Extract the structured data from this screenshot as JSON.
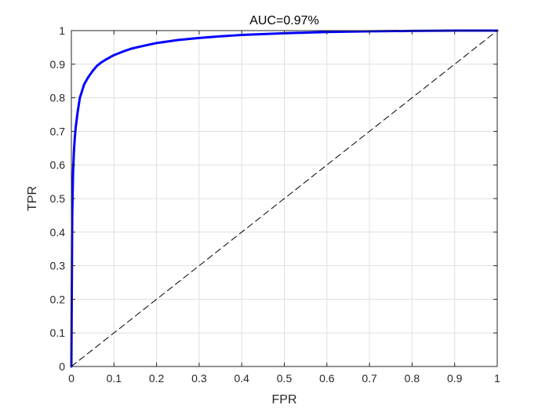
{
  "chart_data": {
    "type": "line",
    "title": "AUC=0.97%",
    "xlabel": "FPR",
    "ylabel": "TPR",
    "xlim": [
      0,
      1
    ],
    "ylim": [
      0,
      1
    ],
    "grid": true,
    "xticks": [
      0,
      0.1,
      0.2,
      0.3,
      0.4,
      0.5,
      0.6,
      0.7,
      0.8,
      0.9,
      1
    ],
    "xtick_labels": [
      "0",
      "0.1",
      "0.2",
      "0.3",
      "0.4",
      "0.5",
      "0.6",
      "0.7",
      "0.8",
      "0.9",
      "1"
    ],
    "yticks": [
      0,
      0.1,
      0.2,
      0.3,
      0.4,
      0.5,
      0.6,
      0.7,
      0.8,
      0.9,
      1
    ],
    "ytick_labels": [
      "0",
      "0.1",
      "0.2",
      "0.3",
      "0.4",
      "0.5",
      "0.6",
      "0.7",
      "0.8",
      "0.9",
      "1"
    ],
    "series": [
      {
        "style": "solid",
        "color": "#0000ff",
        "x": [
          0,
          0.002,
          0.004,
          0.006,
          0.008,
          0.01,
          0.015,
          0.02,
          0.025,
          0.03,
          0.04,
          0.05,
          0.06,
          0.07,
          0.08,
          0.1,
          0.12,
          0.14,
          0.16,
          0.2,
          0.25,
          0.3,
          0.35,
          0.4,
          0.5,
          0.6,
          0.7,
          0.8,
          0.9,
          1
        ],
        "y": [
          0,
          0.45,
          0.58,
          0.64,
          0.68,
          0.71,
          0.76,
          0.8,
          0.82,
          0.84,
          0.862,
          0.88,
          0.895,
          0.905,
          0.913,
          0.927,
          0.937,
          0.946,
          0.952,
          0.963,
          0.972,
          0.978,
          0.983,
          0.987,
          0.992,
          0.996,
          0.998,
          0.999,
          1.0,
          1.0
        ]
      },
      {
        "style": "dashed",
        "color": "#000000",
        "x": [
          0,
          1
        ],
        "y": [
          0,
          1
        ]
      }
    ]
  }
}
